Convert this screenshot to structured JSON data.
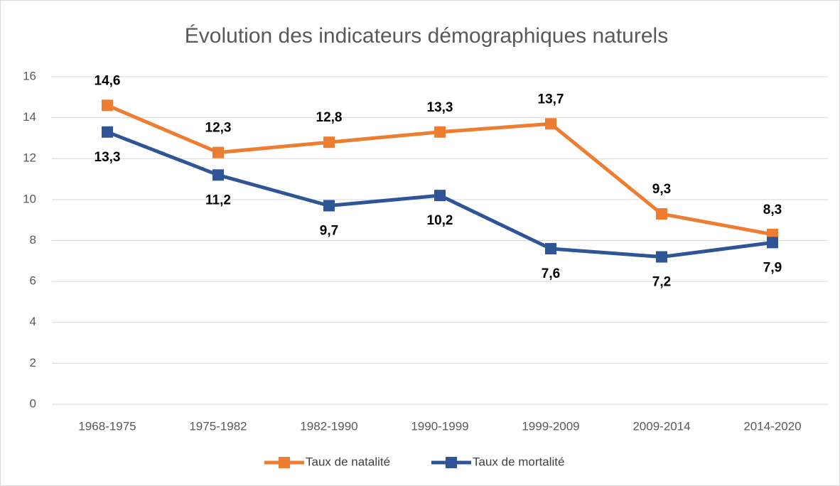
{
  "chart_data": {
    "type": "line",
    "title": "Évolution des indicateurs démographiques naturels",
    "categories": [
      "1968-1975",
      "1975-1982",
      "1982-1990",
      "1990-1999",
      "1999-2009",
      "2009-2014",
      "2014-2020"
    ],
    "series": [
      {
        "name": "Taux de natalité",
        "color": "#ed7d31",
        "values": [
          14.6,
          12.3,
          12.8,
          13.3,
          13.7,
          9.3,
          8.3
        ],
        "value_labels": [
          "14,6",
          "12,3",
          "12,8",
          "13,3",
          "13,7",
          "9,3",
          "8,3"
        ]
      },
      {
        "name": "Taux de mortalité",
        "color": "#2f5597",
        "values": [
          13.3,
          11.2,
          9.7,
          10.2,
          7.6,
          7.2,
          7.9
        ],
        "value_labels": [
          "13,3",
          "11,2",
          "9,7",
          "10,2",
          "7,6",
          "7,2",
          "7,9"
        ]
      }
    ],
    "ylim": [
      0,
      16
    ],
    "yticks": [
      0,
      2,
      4,
      6,
      8,
      10,
      12,
      14,
      16
    ],
    "grid": true,
    "legend": "bottom"
  }
}
